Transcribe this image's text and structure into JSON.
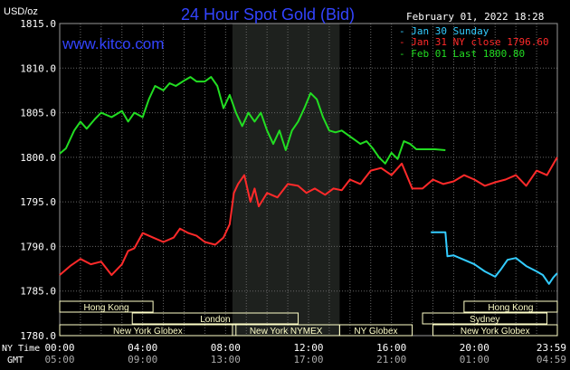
{
  "header": {
    "unit": "USD/oz",
    "title": "24 Hour Spot Gold (Bid)",
    "website": "www.kitco.com",
    "datetime": "February 01, 2022 18:28"
  },
  "legend": [
    {
      "label": "Jan 30 Sunday",
      "color": "#33ccff"
    },
    {
      "label": "Jan 31 NY close 1796.60",
      "color": "#ff2a2a"
    },
    {
      "label": "Feb 01 Last 1800.80",
      "color": "#22dd22"
    }
  ],
  "axis_labels": {
    "ny_time": "NY Time",
    "gmt": "GMT"
  },
  "colors": {
    "background": "#000000",
    "grid": "#666666",
    "axis_text": "#ffffff",
    "title": "#3344ff",
    "website": "#3344ff",
    "session_box_fill": "#ffffc8",
    "session_box_stroke": "#888888",
    "shade": "#1e211e"
  },
  "sessions": [
    {
      "label": "Hong Kong",
      "start": 0,
      "end": 4.5,
      "row": 0
    },
    {
      "label": "London",
      "start": 3.5,
      "end": 11.5,
      "row": 1
    },
    {
      "label": "New York Globex",
      "start": 0,
      "end": 8.5,
      "row": 2
    },
    {
      "label": "New York NYMEX",
      "start": 8.33,
      "end": 13.5,
      "row": 2
    },
    {
      "label": "NY Globex",
      "start": 13.5,
      "end": 17,
      "row": 2
    },
    {
      "label": "Hong Kong",
      "start": 19.5,
      "end": 24,
      "row": 0
    },
    {
      "label": "Sydney",
      "start": 17.5,
      "end": 23.5,
      "row": 1
    },
    {
      "label": "New York Globex",
      "start": 18,
      "end": 24,
      "row": 2
    }
  ],
  "chart_data": {
    "type": "line",
    "ylim": [
      1780,
      1815
    ],
    "yticks": [
      1780.0,
      1785.0,
      1790.0,
      1795.0,
      1800.0,
      1805.0,
      1810.0,
      1815.0
    ],
    "ytick_labels": [
      "1780.0",
      "1785.0",
      "1790.0",
      "1795.0",
      "1800.0",
      "1805.0",
      "1810.0",
      "1815.0"
    ],
    "xlim": [
      0,
      24
    ],
    "xticks": [
      0,
      4,
      8,
      12,
      16,
      20,
      24
    ],
    "xtick_labels_ny": [
      "00:00",
      "04:00",
      "08:00",
      "12:00",
      "16:00",
      "20:00",
      "23:59"
    ],
    "xtick_labels_gmt": [
      "05:00",
      "09:00",
      "13:00",
      "17:00",
      "21:00",
      "01:00",
      "04:59"
    ],
    "shaded_region": [
      8.33,
      13.5
    ],
    "grid": true,
    "legend_position": "top-right",
    "series": [
      {
        "name": "Jan 30 Sunday",
        "color": "#33ccff",
        "x": [
          17.9,
          18.6,
          18.7,
          19.0,
          19.5,
          20.0,
          20.5,
          21.0,
          21.3,
          21.6,
          22.0,
          22.5,
          23.0,
          23.3,
          23.6,
          23.8,
          23.99
        ],
        "y": [
          1791.6,
          1791.6,
          1788.9,
          1789.0,
          1788.5,
          1788.0,
          1787.2,
          1786.6,
          1787.5,
          1788.5,
          1788.7,
          1787.8,
          1787.2,
          1786.8,
          1785.8,
          1786.5,
          1787.0
        ]
      },
      {
        "name": "Jan 31 NY close 1796.60",
        "color": "#ff2a2a",
        "x": [
          0,
          0.5,
          1.0,
          1.5,
          2.0,
          2.5,
          3.0,
          3.3,
          3.6,
          4.0,
          4.5,
          5.0,
          5.5,
          5.8,
          6.2,
          6.6,
          7.0,
          7.5,
          7.9,
          8.2,
          8.4,
          8.6,
          8.9,
          9.2,
          9.4,
          9.6,
          10.0,
          10.5,
          11.0,
          11.5,
          11.9,
          12.3,
          12.8,
          13.2,
          13.6,
          14.0,
          14.5,
          15.0,
          15.5,
          16.0,
          16.5,
          17.0,
          17.5,
          18.0,
          18.5,
          19.0,
          19.5,
          20.0,
          20.5,
          21.0,
          21.5,
          22.0,
          22.5,
          23.0,
          23.5,
          23.99
        ],
        "y": [
          1786.8,
          1787.8,
          1788.6,
          1788.0,
          1788.3,
          1786.8,
          1788.0,
          1789.5,
          1789.8,
          1791.5,
          1791.0,
          1790.5,
          1791.0,
          1792.0,
          1791.5,
          1791.2,
          1790.5,
          1790.2,
          1791.0,
          1792.5,
          1796.0,
          1797.0,
          1798.0,
          1795.0,
          1796.5,
          1794.5,
          1796.0,
          1795.5,
          1797.0,
          1796.8,
          1796.0,
          1796.5,
          1795.8,
          1796.5,
          1796.3,
          1797.5,
          1797.0,
          1798.5,
          1798.8,
          1798.0,
          1799.3,
          1796.5,
          1796.5,
          1797.5,
          1797.0,
          1797.3,
          1798.0,
          1797.5,
          1796.8,
          1797.2,
          1797.5,
          1798.0,
          1796.8,
          1798.5,
          1798.0,
          1800.0
        ]
      },
      {
        "name": "Feb 01 Last 1800.80",
        "color": "#22dd22",
        "x": [
          0,
          0.3,
          0.7,
          1.0,
          1.3,
          1.7,
          2.0,
          2.5,
          3.0,
          3.3,
          3.6,
          4.0,
          4.3,
          4.6,
          5.0,
          5.3,
          5.6,
          6.0,
          6.3,
          6.6,
          7.0,
          7.3,
          7.6,
          7.9,
          8.2,
          8.5,
          8.8,
          9.1,
          9.4,
          9.7,
          10.0,
          10.3,
          10.6,
          10.9,
          11.2,
          11.5,
          11.8,
          12.1,
          12.4,
          12.7,
          13.0,
          13.3,
          13.6,
          13.9,
          14.2,
          14.5,
          14.8,
          15.1,
          15.4,
          15.7,
          16.0,
          16.3,
          16.6,
          16.9,
          17.2,
          17.5,
          17.8,
          18.1,
          18.6
        ],
        "y": [
          1800.4,
          1801.0,
          1803.0,
          1804.0,
          1803.2,
          1804.3,
          1805.0,
          1804.5,
          1805.2,
          1804.0,
          1805.0,
          1804.5,
          1806.5,
          1808.0,
          1807.5,
          1808.3,
          1808.0,
          1808.6,
          1809.0,
          1808.5,
          1808.5,
          1809.0,
          1808.0,
          1805.5,
          1807.0,
          1805.0,
          1803.5,
          1805.0,
          1804.0,
          1805.0,
          1803.0,
          1801.5,
          1803.0,
          1800.8,
          1803.0,
          1804.0,
          1805.5,
          1807.2,
          1806.5,
          1804.5,
          1803.0,
          1802.8,
          1803.0,
          1802.5,
          1802.0,
          1801.5,
          1801.8,
          1801.0,
          1800.0,
          1799.3,
          1800.5,
          1799.8,
          1801.8,
          1801.5,
          1800.9,
          1800.9,
          1800.9,
          1800.9,
          1800.8
        ]
      }
    ]
  }
}
